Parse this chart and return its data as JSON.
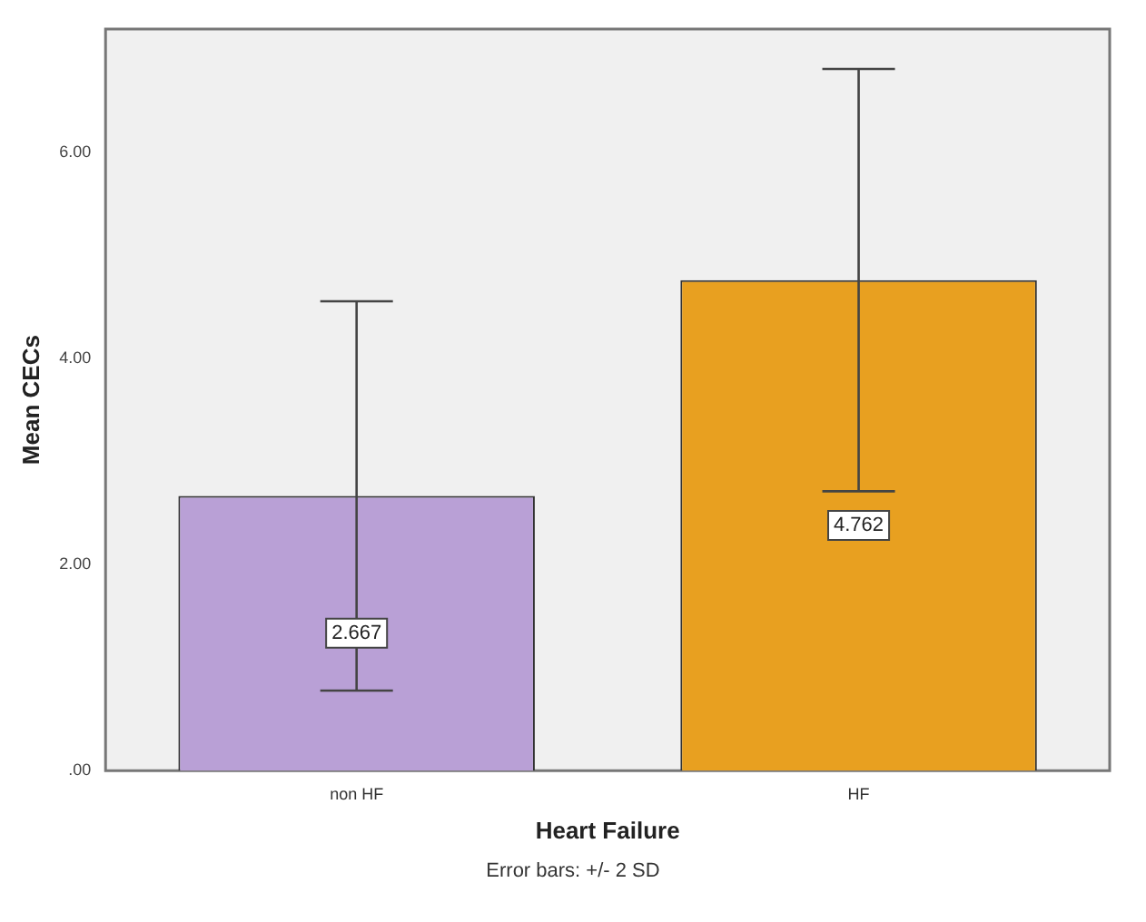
{
  "chart_data": {
    "type": "bar",
    "xlabel": "Heart Failure",
    "ylabel": "Mean CECs",
    "categories": [
      "non HF",
      "HF"
    ],
    "values": [
      2.667,
      4.762
    ],
    "colors": [
      "#b9a0d6",
      "#e8a020"
    ],
    "errors": [
      1.89,
      2.05
    ],
    "data_labels": true,
    "ylim": [
      0,
      7.2
    ],
    "yticks": [
      {
        "value": 0,
        "label": ".00"
      },
      {
        "value": 2,
        "label": "2.00"
      },
      {
        "value": 4,
        "label": "4.00"
      },
      {
        "value": 6,
        "label": "6.00"
      }
    ],
    "grid": false,
    "legend": false,
    "annotations": [
      "Error bars: +/- 2 SD"
    ]
  }
}
